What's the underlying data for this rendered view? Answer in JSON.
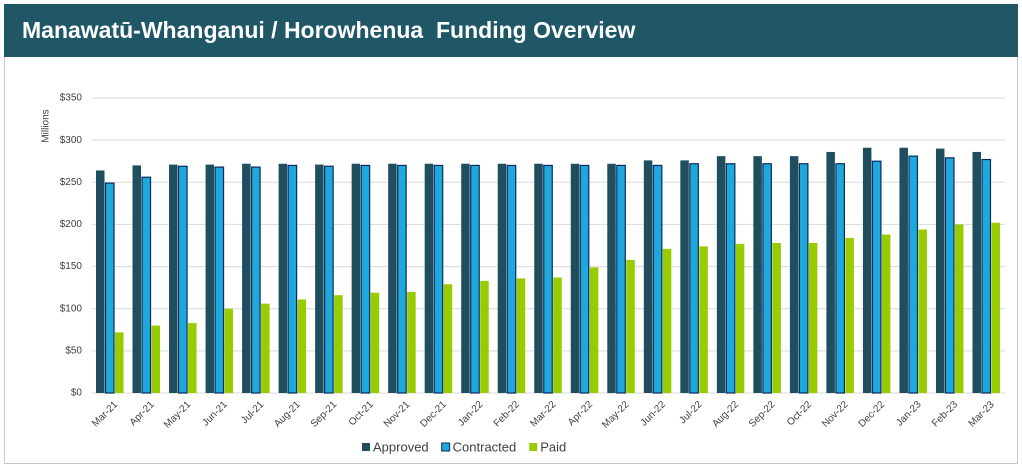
{
  "chart_data": {
    "type": "bar",
    "title": "Manawatū-Whanganui / Horowhenua  Funding Overview",
    "y_label": "Millions",
    "categories": [
      "Mar-21",
      "Apr-21",
      "May-21",
      "Jun-21",
      "Jul-21",
      "Aug-21",
      "Sep-21",
      "Oct-21",
      "Nov-21",
      "Dec-21",
      "Jan-22",
      "Feb-22",
      "Mar-22",
      "Apr-22",
      "May-22",
      "Jun-22",
      "Jul-22",
      "Aug-22",
      "Sep-22",
      "Oct-22",
      "Nov-22",
      "Dec-22",
      "Jan-23",
      "Feb-23",
      "Mar-23"
    ],
    "series": [
      {
        "name": "Approved",
        "color": "#1f4e5f",
        "values": [
          264,
          270,
          271,
          271,
          272,
          272,
          271,
          272,
          272,
          272,
          272,
          272,
          272,
          272,
          272,
          276,
          276,
          281,
          281,
          281,
          286,
          291,
          291,
          290,
          286
        ]
      },
      {
        "name": "Contracted",
        "color": "#1fa8dc",
        "values": [
          249,
          256,
          269,
          268,
          268,
          270,
          269,
          270,
          270,
          270,
          270,
          270,
          270,
          270,
          270,
          270,
          272,
          272,
          272,
          272,
          272,
          275,
          281,
          279,
          277
        ]
      },
      {
        "name": "Paid",
        "color": "#99cc00",
        "values": [
          72,
          80,
          83,
          100,
          106,
          111,
          116,
          119,
          120,
          129,
          133,
          136,
          137,
          149,
          158,
          171,
          174,
          177,
          178,
          178,
          184,
          188,
          194,
          200,
          202
        ]
      }
    ],
    "ylim": [
      0,
      350
    ],
    "yticks": [
      {
        "value": 0,
        "label": "$0"
      },
      {
        "value": 50,
        "label": "$50"
      },
      {
        "value": 100,
        "label": "$100"
      },
      {
        "value": 150,
        "label": "$150"
      },
      {
        "value": 200,
        "label": "$200"
      },
      {
        "value": 250,
        "label": "$250"
      },
      {
        "value": 300,
        "label": "$300"
      },
      {
        "value": 350,
        "label": "$350"
      }
    ],
    "grid": true,
    "legend": "bottom"
  }
}
